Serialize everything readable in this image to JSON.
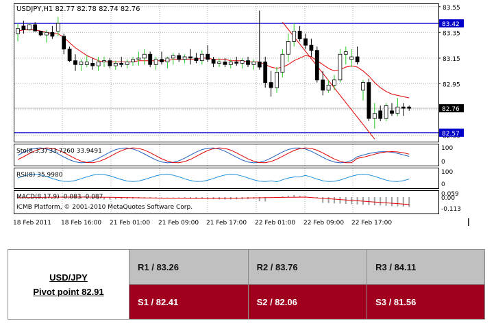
{
  "chart_data": {
    "type": "candlestick",
    "symbol_header": "USDJPY,H1  82.77 82.78 82.74 82.76",
    "x_labels": [
      "18 Feb 2011",
      "18 Feb 16:00",
      "21 Feb 01:00",
      "21 Feb 09:00",
      "21 Feb 17:00",
      "22 Feb 01:00",
      "22 Feb 09:00",
      "22 Feb 17:00"
    ],
    "y_labels": [
      "83.55",
      "83.35",
      "83.15",
      "82.95",
      "82.75",
      "82.55"
    ],
    "ylim": [
      82.5,
      83.57
    ],
    "current_price_label": "82.76",
    "horizontal_lines": [
      {
        "label": "83.42",
        "value": 83.42,
        "color": "#0000c8"
      },
      {
        "label": "82.57",
        "value": 82.57,
        "color": "#0000c8"
      }
    ],
    "candles": [
      {
        "o": 83.34,
        "h": 83.42,
        "l": 83.28,
        "c": 83.38
      },
      {
        "o": 83.4,
        "h": 83.44,
        "l": 83.34,
        "c": 83.37
      },
      {
        "o": 83.37,
        "h": 83.42,
        "l": 83.36,
        "c": 83.41
      },
      {
        "o": 83.41,
        "h": 83.43,
        "l": 83.36,
        "c": 83.36
      },
      {
        "o": 83.36,
        "h": 83.36,
        "l": 83.32,
        "c": 83.33
      },
      {
        "o": 83.33,
        "h": 83.37,
        "l": 83.27,
        "c": 83.35
      },
      {
        "o": 83.35,
        "h": 83.4,
        "l": 83.3,
        "c": 83.32
      },
      {
        "o": 83.36,
        "h": 83.47,
        "l": 83.32,
        "c": 83.42
      },
      {
        "o": 83.32,
        "h": 83.34,
        "l": 83.18,
        "c": 83.22
      },
      {
        "o": 83.22,
        "h": 83.24,
        "l": 83.12,
        "c": 83.13
      },
      {
        "o": 83.13,
        "h": 83.18,
        "l": 83.05,
        "c": 83.1
      },
      {
        "o": 83.1,
        "h": 83.14,
        "l": 83.05,
        "c": 83.12
      },
      {
        "o": 83.1,
        "h": 83.17,
        "l": 83.08,
        "c": 83.12
      },
      {
        "o": 83.11,
        "h": 83.15,
        "l": 83.06,
        "c": 83.09
      },
      {
        "o": 83.09,
        "h": 83.16,
        "l": 83.05,
        "c": 83.12
      },
      {
        "o": 83.12,
        "h": 83.16,
        "l": 83.08,
        "c": 83.13
      },
      {
        "o": 83.13,
        "h": 83.15,
        "l": 83.07,
        "c": 83.09
      },
      {
        "o": 83.09,
        "h": 83.13,
        "l": 83.06,
        "c": 83.11
      },
      {
        "o": 83.11,
        "h": 83.16,
        "l": 83.08,
        "c": 83.1
      },
      {
        "o": 83.1,
        "h": 83.14,
        "l": 83.07,
        "c": 83.12
      },
      {
        "o": 83.12,
        "h": 83.16,
        "l": 83.09,
        "c": 83.14
      },
      {
        "o": 83.14,
        "h": 83.2,
        "l": 83.09,
        "c": 83.15
      },
      {
        "o": 83.15,
        "h": 83.22,
        "l": 83.1,
        "c": 83.18
      },
      {
        "o": 83.18,
        "h": 83.2,
        "l": 83.08,
        "c": 83.1
      },
      {
        "o": 83.1,
        "h": 83.16,
        "l": 83.06,
        "c": 83.14
      },
      {
        "o": 83.14,
        "h": 83.2,
        "l": 83.1,
        "c": 83.12
      },
      {
        "o": 83.12,
        "h": 83.16,
        "l": 83.07,
        "c": 83.15
      },
      {
        "o": 83.15,
        "h": 83.19,
        "l": 83.1,
        "c": 83.17
      },
      {
        "o": 83.17,
        "h": 83.19,
        "l": 83.12,
        "c": 83.14
      },
      {
        "o": 83.14,
        "h": 83.18,
        "l": 83.11,
        "c": 83.16
      },
      {
        "o": 83.16,
        "h": 83.22,
        "l": 83.1,
        "c": 83.15
      },
      {
        "o": 83.15,
        "h": 83.19,
        "l": 83.11,
        "c": 83.13
      },
      {
        "o": 83.13,
        "h": 83.21,
        "l": 83.1,
        "c": 83.18
      },
      {
        "o": 83.18,
        "h": 83.25,
        "l": 83.12,
        "c": 83.14
      },
      {
        "o": 83.14,
        "h": 83.16,
        "l": 83.08,
        "c": 83.11
      },
      {
        "o": 83.11,
        "h": 83.15,
        "l": 83.08,
        "c": 83.12
      },
      {
        "o": 83.12,
        "h": 83.15,
        "l": 83.08,
        "c": 83.1
      },
      {
        "o": 83.1,
        "h": 83.14,
        "l": 83.07,
        "c": 83.12
      },
      {
        "o": 83.12,
        "h": 83.16,
        "l": 83.09,
        "c": 83.11
      },
      {
        "o": 83.11,
        "h": 83.15,
        "l": 83.07,
        "c": 83.13
      },
      {
        "o": 83.13,
        "h": 83.16,
        "l": 83.08,
        "c": 83.1
      },
      {
        "o": 83.1,
        "h": 83.14,
        "l": 83.06,
        "c": 83.12
      },
      {
        "o": 83.12,
        "h": 83.52,
        "l": 83.06,
        "c": 83.08
      },
      {
        "o": 83.12,
        "h": 83.16,
        "l": 82.92,
        "c": 82.96
      },
      {
        "o": 82.96,
        "h": 83.05,
        "l": 82.85,
        "c": 82.92
      },
      {
        "o": 82.92,
        "h": 83.08,
        "l": 82.88,
        "c": 83.04
      },
      {
        "o": 83.04,
        "h": 83.22,
        "l": 83.0,
        "c": 83.18
      },
      {
        "o": 83.18,
        "h": 83.34,
        "l": 83.12,
        "c": 83.28
      },
      {
        "o": 83.28,
        "h": 83.42,
        "l": 83.24,
        "c": 83.36
      },
      {
        "o": 83.36,
        "h": 83.4,
        "l": 83.28,
        "c": 83.3
      },
      {
        "o": 83.3,
        "h": 83.34,
        "l": 83.22,
        "c": 83.25
      },
      {
        "o": 83.25,
        "h": 83.3,
        "l": 83.16,
        "c": 83.21
      },
      {
        "o": 83.21,
        "h": 83.24,
        "l": 82.96,
        "c": 82.98
      },
      {
        "o": 82.98,
        "h": 83.05,
        "l": 82.86,
        "c": 82.9
      },
      {
        "o": 82.9,
        "h": 82.98,
        "l": 82.88,
        "c": 82.94
      },
      {
        "o": 82.94,
        "h": 83.02,
        "l": 82.9,
        "c": 82.98
      },
      {
        "o": 82.98,
        "h": 83.22,
        "l": 82.96,
        "c": 83.18
      },
      {
        "o": 83.18,
        "h": 83.24,
        "l": 83.1,
        "c": 83.2
      },
      {
        "o": 83.14,
        "h": 83.22,
        "l": 83.08,
        "c": 83.16
      },
      {
        "o": 83.16,
        "h": 83.24,
        "l": 83.1,
        "c": 83.12
      },
      {
        "o": 82.9,
        "h": 82.98,
        "l": 82.82,
        "c": 82.96
      },
      {
        "o": 82.96,
        "h": 82.99,
        "l": 82.66,
        "c": 82.68
      },
      {
        "o": 82.68,
        "h": 82.8,
        "l": 82.6,
        "c": 82.72
      },
      {
        "o": 82.74,
        "h": 82.78,
        "l": 82.66,
        "c": 82.68
      },
      {
        "o": 82.68,
        "h": 82.8,
        "l": 82.66,
        "c": 82.78
      },
      {
        "o": 82.74,
        "h": 82.8,
        "l": 82.7,
        "c": 82.72
      },
      {
        "o": 82.72,
        "h": 82.84,
        "l": 82.7,
        "c": 82.77
      },
      {
        "o": 82.77,
        "h": 82.8,
        "l": 82.7,
        "c": 82.76
      },
      {
        "o": 82.77,
        "h": 82.78,
        "l": 82.74,
        "c": 82.76
      }
    ],
    "moving_average": [
      83.36,
      83.37,
      83.37,
      83.37,
      83.36,
      83.35,
      83.34,
      83.34,
      83.31,
      83.27,
      83.23,
      83.2,
      83.17,
      83.15,
      83.13,
      83.12,
      83.12,
      83.12,
      83.12,
      83.12,
      83.12,
      83.13,
      83.13,
      83.13,
      83.13,
      83.13,
      83.13,
      83.14,
      83.14,
      83.14,
      83.14,
      83.14,
      83.15,
      83.15,
      83.14,
      83.14,
      83.14,
      83.13,
      83.13,
      83.13,
      83.12,
      83.12,
      83.12,
      83.1,
      83.08,
      83.07,
      83.08,
      83.1,
      83.13,
      83.15,
      83.17,
      83.16,
      83.13,
      83.1,
      83.07,
      83.05,
      83.06,
      83.08,
      83.09,
      83.08,
      83.05,
      83.01,
      82.96,
      82.92,
      82.89,
      82.87,
      82.86,
      82.85,
      82.84
    ],
    "trend_line": [
      {
        "i": 46,
        "v": 83.43
      },
      {
        "i": 62,
        "v": 82.52
      }
    ],
    "indicators": [
      {
        "label": "Sto(8,3,3) 33.7260 33.9491",
        "scale": [
          "100",
          "0"
        ]
      },
      {
        "label": "RSI(8) 35.9980",
        "scale": [
          "100",
          "0"
        ]
      },
      {
        "label": "MACD(8,17,9) -0.083 -0.087",
        "scale": [
          "0.059",
          "0.00",
          "-0.113"
        ]
      }
    ],
    "watermark": "ICMB Platform, © 2001-2010 MetaQuotes Software Corp."
  },
  "pivot": {
    "pair": "USD/JPY",
    "pivot_label": "Pivot point 82.91",
    "resistance": [
      "R1 / 83.26",
      "R2 / 83.76",
      "R3 / 84.11"
    ],
    "support": [
      "S1 / 82.41",
      "S2 / 82.06",
      "S3 / 81.56"
    ]
  },
  "colors": {
    "bull": "#22cc22",
    "bear": "#000000",
    "ma": "#e00000",
    "level_line": "#0000c8",
    "resistance_bg": "#c0c0c0",
    "support_bg": "#a0001e"
  }
}
